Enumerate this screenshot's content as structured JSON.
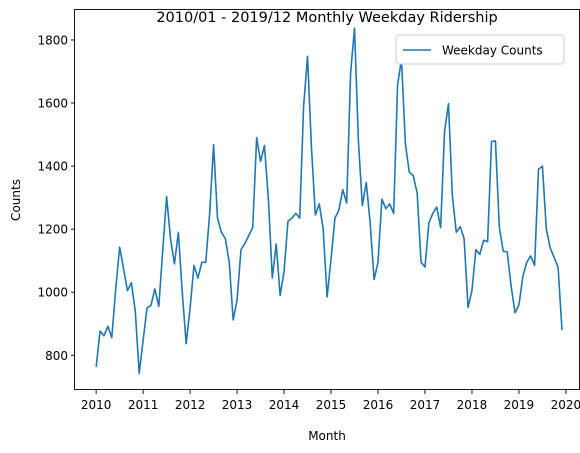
{
  "chart_data": {
    "type": "line",
    "title": "2010/01 - 2019/12 Monthly Weekday Ridership",
    "xlabel": "Month",
    "ylabel": "Counts",
    "x_start": "2010-01",
    "xlim": [
      2009.55,
      2020.3
    ],
    "ylim": [
      690,
      1895
    ],
    "xticks": [
      2010,
      2011,
      2012,
      2013,
      2014,
      2015,
      2016,
      2017,
      2018,
      2019,
      2020
    ],
    "yticks": [
      800,
      1000,
      1200,
      1400,
      1600,
      1800
    ],
    "legend": {
      "position": "upper right"
    },
    "grid": false,
    "color": "#1f77b4",
    "series": [
      {
        "name": "Weekday Counts",
        "values": [
          763,
          877,
          862,
          892,
          856,
          1010,
          1143,
          1075,
          1005,
          1030,
          940,
          743,
          848,
          950,
          958,
          1010,
          955,
          1130,
          1303,
          1170,
          1090,
          1190,
          1000,
          837,
          950,
          1085,
          1045,
          1095,
          1095,
          1250,
          1468,
          1235,
          1190,
          1170,
          1095,
          912,
          975,
          1135,
          1155,
          1180,
          1205,
          1490,
          1415,
          1465,
          1295,
          1045,
          1153,
          990,
          1065,
          1225,
          1235,
          1250,
          1235,
          1590,
          1748,
          1460,
          1245,
          1280,
          1200,
          985,
          1105,
          1235,
          1260,
          1325,
          1283,
          1695,
          1837,
          1478,
          1275,
          1348,
          1220,
          1040,
          1095,
          1295,
          1265,
          1280,
          1250,
          1658,
          1738,
          1470,
          1380,
          1370,
          1315,
          1095,
          1080,
          1220,
          1250,
          1270,
          1205,
          1510,
          1598,
          1305,
          1190,
          1208,
          1170,
          952,
          1005,
          1135,
          1120,
          1165,
          1160,
          1478,
          1480,
          1205,
          1130,
          1128,
          1020,
          935,
          960,
          1050,
          1095,
          1115,
          1085,
          1390,
          1400,
          1200,
          1140,
          1110,
          1080,
          880
        ]
      }
    ]
  }
}
